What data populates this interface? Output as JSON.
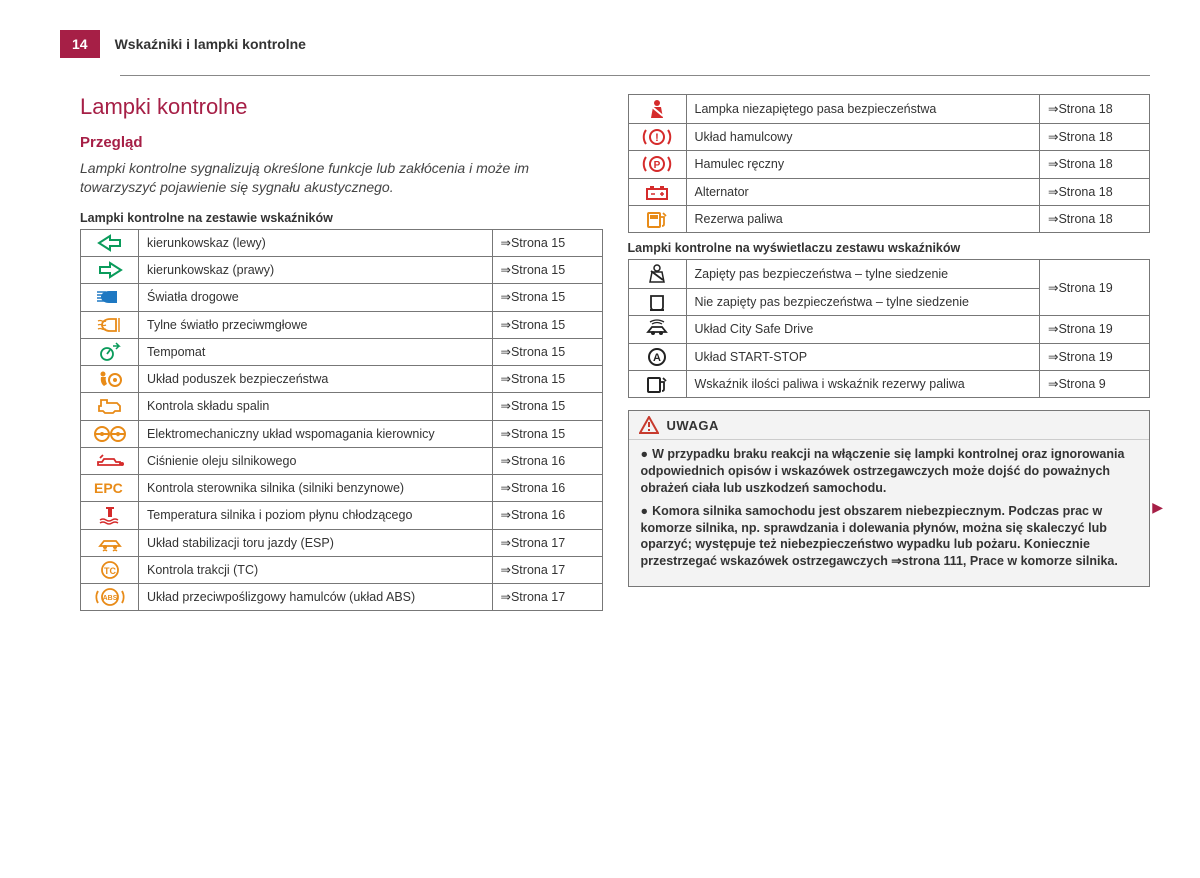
{
  "page_number": "14",
  "header_title": "Wskaźniki i lampki kontrolne",
  "heading_main": "Lampki kontrolne",
  "heading_sub": "Przegląd",
  "intro_text": "Lampki kontrolne sygnalizują określone funkcje lub zakłócenia i może im towarzyszyć pojawienie się sygnału akustycznego.",
  "table1_caption": "Lampki kontrolne na zestawie wskaźników",
  "table2_caption": "Lampki kontrolne na wyświetlaczu zestawu wskaźników",
  "colors": {
    "brand": "#a61f46",
    "green": "#0a9b5b",
    "orange": "#e88b18",
    "red": "#d52b2b",
    "blue": "#1e78c2",
    "black": "#222222"
  },
  "table1": [
    {
      "icon": "arrow-left",
      "color": "green",
      "desc": "kierunkowskaz (lewy)",
      "page": "⇒Strona 15"
    },
    {
      "icon": "arrow-right",
      "color": "green",
      "desc": "kierunkowskaz (prawy)",
      "page": "⇒Strona 15"
    },
    {
      "icon": "high-beam",
      "color": "blue",
      "desc": "Światła drogowe",
      "page": "⇒Strona 15"
    },
    {
      "icon": "rear-fog",
      "color": "orange",
      "desc": "Tylne światło przeciwmgłowe",
      "page": "⇒Strona 15"
    },
    {
      "icon": "cruise",
      "color": "green",
      "desc": "Tempomat",
      "page": "⇒Strona 15"
    },
    {
      "icon": "airbag",
      "color": "orange",
      "desc": "Układ poduszek bezpieczeństwa",
      "page": "⇒Strona 15"
    },
    {
      "icon": "engine",
      "color": "orange",
      "desc": "Kontrola składu spalin",
      "page": "⇒Strona 15"
    },
    {
      "icon": "steering",
      "color": "orange",
      "desc": "Elektromechaniczny układ wspomagania kierownicy",
      "page": "⇒Strona 15"
    },
    {
      "icon": "oil",
      "color": "red",
      "desc": "Ciśnienie oleju silnikowego",
      "page": "⇒Strona 16"
    },
    {
      "icon": "epc",
      "color": "orange",
      "desc": "Kontrola sterownika silnika (silniki benzynowe)",
      "page": "⇒Strona 16"
    },
    {
      "icon": "coolant",
      "color": "red",
      "desc": "Temperatura silnika i poziom płynu chłodzącego",
      "page": "⇒Strona 16"
    },
    {
      "icon": "esp",
      "color": "orange",
      "desc": "Układ stabilizacji toru jazdy (ESP)",
      "page": "⇒Strona 17"
    },
    {
      "icon": "tc",
      "color": "orange",
      "desc": "Kontrola trakcji (TC)",
      "page": "⇒Strona 17"
    },
    {
      "icon": "abs",
      "color": "orange",
      "desc": "Układ przeciwpoślizgowy hamulców (układ ABS)",
      "page": "⇒Strona 17"
    }
  ],
  "table1_right": [
    {
      "icon": "seatbelt",
      "color": "red",
      "desc": "Lampka niezapiętego pasa bezpieczeństwa",
      "page": "⇒Strona 18"
    },
    {
      "icon": "brake",
      "color": "red",
      "desc": "Układ hamulcowy",
      "page": "⇒Strona 18"
    },
    {
      "icon": "parking-brake",
      "color": "red",
      "desc": "Hamulec ręczny",
      "page": "⇒Strona 18"
    },
    {
      "icon": "battery",
      "color": "red",
      "desc": "Alternator",
      "page": "⇒Strona 18"
    },
    {
      "icon": "fuel",
      "color": "orange",
      "desc": "Rezerwa paliwa",
      "page": "⇒Strona 18"
    }
  ],
  "table2": [
    {
      "icon": "rear-seatbelt-on",
      "color": "black",
      "desc": "Zapięty pas bezpieczeństwa – tylne siedzenie",
      "page": "⇒Strona 19",
      "rowspan_page": 2
    },
    {
      "icon": "rear-seatbelt-off",
      "color": "black",
      "desc": "Nie zapięty pas bezpieczeństwa – tylne siedzenie",
      "page": ""
    },
    {
      "icon": "city-safe",
      "color": "black",
      "desc": "Układ City Safe Drive",
      "page": "⇒Strona 19"
    },
    {
      "icon": "start-stop",
      "color": "black",
      "desc": "Układ START-STOP",
      "page": "⇒Strona 19"
    },
    {
      "icon": "fuel-gauge",
      "color": "black",
      "desc": "Wskaźnik ilości paliwa i wskaźnik rezerwy paliwa",
      "page": "⇒Strona 9"
    }
  ],
  "warning": {
    "title": "UWAGA",
    "p1": "W przypadku braku reakcji na włączenie się lampki kontrolnej oraz ignorowania odpowiednich opisów i wskazówek ostrzegawczych może dojść do poważnych obrażeń ciała lub uszkodzeń samochodu.",
    "p2": "Komora silnika samochodu jest obszarem niebezpiecznym. Podczas prac w komorze silnika, np. sprawdzania i dolewania płynów, można się skaleczyć lub oparzyć; występuje też niebezpieczeństwo wypadku lub pożaru. Koniecznie przestrzegać wskazówek ostrzegawczych ⇒strona 111, Prace w komorze silnika."
  }
}
